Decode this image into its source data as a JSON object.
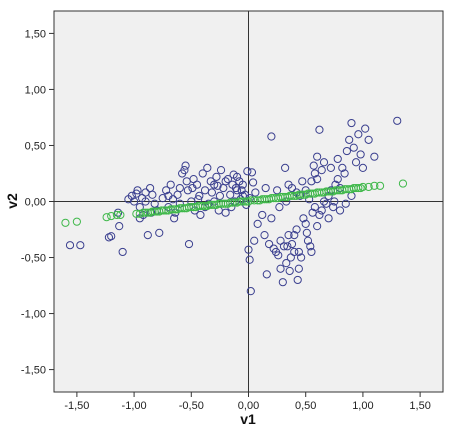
{
  "chart_data": {
    "type": "scatter",
    "title": "",
    "xlabel": "v1",
    "ylabel": "v2",
    "xlim": [
      -1.7,
      1.7
    ],
    "ylim": [
      -1.7,
      1.7
    ],
    "xticks": [
      "-1,50",
      "-1,00",
      "-0,50",
      "0,00",
      "0,50",
      "1,00",
      "1,50"
    ],
    "yticks": [
      "1,50",
      "1,00",
      "0,50",
      "0,00",
      "-0,50",
      "-1,00",
      "-1,50"
    ],
    "xtick_values": [
      -1.5,
      -1.0,
      -0.5,
      0.0,
      0.5,
      1.0,
      1.5
    ],
    "ytick_values": [
      1.5,
      1.0,
      0.5,
      0.0,
      -0.5,
      -1.0,
      -1.5
    ],
    "reference_lines": {
      "x": 0,
      "y": 0
    },
    "grid": false,
    "plot_background": "#f0f0f0",
    "series": [
      {
        "color": "#3a3f8f",
        "points": [
          [
            -1.56,
            -0.39
          ],
          [
            -1.47,
            -0.39
          ],
          [
            -1.22,
            -0.32
          ],
          [
            -1.2,
            -0.31
          ],
          [
            -1.13,
            -0.22
          ],
          [
            -1.1,
            -0.45
          ],
          [
            -1.14,
            -0.1
          ],
          [
            -1.05,
            0.02
          ],
          [
            -1.02,
            0.05
          ],
          [
            -0.98,
            0.07
          ],
          [
            -0.97,
            0.1
          ],
          [
            -0.95,
            -0.05
          ],
          [
            -0.93,
            0.03
          ],
          [
            -0.92,
            -0.12
          ],
          [
            -0.9,
            0.0
          ],
          [
            -0.88,
            -0.3
          ],
          [
            -0.86,
            0.12
          ],
          [
            -0.84,
            0.06
          ],
          [
            -0.82,
            -0.02
          ],
          [
            -0.8,
            -0.08
          ],
          [
            -0.78,
            -0.28
          ],
          [
            -0.75,
            0.03
          ],
          [
            -0.72,
            0.1
          ],
          [
            -0.7,
            -0.05
          ],
          [
            -0.68,
            0.15
          ],
          [
            -0.66,
            0.02
          ],
          [
            -0.64,
            -0.1
          ],
          [
            -0.62,
            0.06
          ],
          [
            -0.6,
            -0.02
          ],
          [
            -0.58,
            0.25
          ],
          [
            -0.56,
            0.28
          ],
          [
            -0.55,
            0.32
          ],
          [
            -0.54,
            0.18
          ],
          [
            -0.53,
            0.1
          ],
          [
            -0.52,
            -0.38
          ],
          [
            -0.5,
            0.0
          ],
          [
            -0.49,
            0.12
          ],
          [
            -0.48,
            0.2
          ],
          [
            -0.47,
            -0.08
          ],
          [
            -0.45,
            0.15
          ],
          [
            -0.43,
            0.05
          ],
          [
            -0.42,
            -0.12
          ],
          [
            -0.4,
            0.25
          ],
          [
            -0.38,
            0.1
          ],
          [
            -0.36,
            0.3
          ],
          [
            -0.35,
            -0.02
          ],
          [
            -0.33,
            0.18
          ],
          [
            -0.32,
            0.08
          ],
          [
            -0.3,
            0.0
          ],
          [
            -0.28,
            0.22
          ],
          [
            -0.27,
            0.14
          ],
          [
            -0.26,
            -0.08
          ],
          [
            -0.25,
            0.05
          ],
          [
            -0.24,
            0.28
          ],
          [
            -0.22,
            0.12
          ],
          [
            -0.2,
            -0.1
          ],
          [
            -0.18,
            0.2
          ],
          [
            -0.16,
            0.06
          ],
          [
            -0.15,
            -0.05
          ],
          [
            -0.14,
            0.15
          ],
          [
            -0.13,
            0.24
          ],
          [
            -0.12,
            0.0
          ],
          [
            -0.11,
            0.12
          ],
          [
            -0.1,
            0.1
          ],
          [
            -0.08,
            0.18
          ],
          [
            -0.07,
            0.02
          ],
          [
            -0.06,
            0.1
          ],
          [
            -0.05,
            0.15
          ],
          [
            -0.03,
            0.06
          ],
          [
            -0.02,
            -0.03
          ],
          [
            -0.01,
            0.27
          ],
          [
            0.03,
            0.26
          ],
          [
            0.04,
            0.17
          ],
          [
            0.06,
            0.08
          ],
          [
            0.0,
            -0.43
          ],
          [
            0.01,
            -0.52
          ],
          [
            0.02,
            -0.8
          ],
          [
            0.05,
            -0.35
          ],
          [
            0.08,
            -0.2
          ],
          [
            0.12,
            -0.12
          ],
          [
            0.14,
            -0.3
          ],
          [
            0.16,
            -0.65
          ],
          [
            0.18,
            -0.38
          ],
          [
            0.2,
            -0.15
          ],
          [
            0.22,
            -0.42
          ],
          [
            0.24,
            -0.45
          ],
          [
            0.26,
            -0.48
          ],
          [
            0.28,
            -0.6
          ],
          [
            0.3,
            -0.72
          ],
          [
            0.31,
            -0.4
          ],
          [
            0.33,
            -0.55
          ],
          [
            0.35,
            -0.3
          ],
          [
            0.36,
            -0.62
          ],
          [
            0.38,
            -0.38
          ],
          [
            0.4,
            -0.3
          ],
          [
            0.42,
            -0.25
          ],
          [
            0.43,
            -0.7
          ],
          [
            0.44,
            -0.45
          ],
          [
            0.46,
            -0.5
          ],
          [
            0.48,
            -0.15
          ],
          [
            0.5,
            -0.2
          ],
          [
            0.52,
            -0.35
          ],
          [
            0.54,
            -0.4
          ],
          [
            0.56,
            -0.1
          ],
          [
            0.58,
            -0.05
          ],
          [
            0.6,
            -0.22
          ],
          [
            0.62,
            -0.12
          ],
          [
            0.64,
            -0.08
          ],
          [
            0.66,
            0.0
          ],
          [
            0.68,
            -0.02
          ],
          [
            0.7,
            0.05
          ],
          [
            0.72,
            0.1
          ],
          [
            0.74,
            -0.05
          ],
          [
            0.76,
            0.15
          ],
          [
            0.78,
            0.2
          ],
          [
            0.8,
            0.12
          ],
          [
            0.82,
            0.3
          ],
          [
            0.84,
            0.25
          ],
          [
            0.86,
            0.45
          ],
          [
            0.88,
            0.55
          ],
          [
            0.9,
            0.7
          ],
          [
            0.92,
            0.48
          ],
          [
            0.94,
            0.35
          ],
          [
            0.96,
            0.6
          ],
          [
            0.98,
            0.42
          ],
          [
            1.0,
            0.3
          ],
          [
            1.02,
            0.65
          ],
          [
            1.05,
            0.55
          ],
          [
            1.1,
            0.4
          ],
          [
            1.3,
            0.72
          ],
          [
            0.55,
            0.18
          ],
          [
            0.57,
            0.32
          ],
          [
            0.6,
            0.4
          ],
          [
            0.62,
            0.64
          ],
          [
            0.64,
            0.28
          ],
          [
            0.58,
            0.25
          ],
          [
            0.5,
            0.1
          ],
          [
            0.45,
            0.05
          ],
          [
            0.38,
            0.12
          ],
          [
            0.33,
            0.0
          ],
          [
            0.27,
            -0.05
          ],
          [
            0.2,
            0.58
          ],
          [
            0.32,
            0.3
          ],
          [
            0.15,
            0.12
          ],
          [
            0.25,
            0.1
          ],
          [
            0.35,
            0.15
          ],
          [
            0.42,
            0.08
          ],
          [
            0.47,
            0.18
          ],
          [
            0.53,
            0.02
          ],
          [
            0.7,
            -0.15
          ],
          [
            0.75,
            0.0
          ],
          [
            0.8,
            -0.08
          ],
          [
            0.85,
            -0.02
          ],
          [
            0.9,
            0.05
          ],
          [
            0.6,
            0.2
          ],
          [
            0.66,
            0.35
          ],
          [
            0.72,
            0.3
          ],
          [
            0.78,
            0.38
          ],
          [
            0.4,
            -0.45
          ],
          [
            0.34,
            -0.4
          ],
          [
            0.28,
            -0.35
          ],
          [
            0.37,
            -0.5
          ],
          [
            0.44,
            -0.6
          ],
          [
            0.51,
            -0.28
          ],
          [
            0.55,
            -0.45
          ],
          [
            -0.95,
            -0.15
          ],
          [
            -0.9,
            0.08
          ],
          [
            -1.0,
            0.0
          ],
          [
            -0.85,
            -0.1
          ],
          [
            -0.7,
            0.05
          ],
          [
            -0.65,
            -0.15
          ],
          [
            -0.6,
            0.12
          ],
          [
            -0.44,
            0.02
          ],
          [
            -0.38,
            -0.05
          ],
          [
            -0.3,
            0.15
          ],
          [
            -0.2,
            0.18
          ],
          [
            -0.1,
            0.22
          ],
          [
            -0.05,
            0.05
          ],
          [
            0.01,
            0.03
          ]
        ]
      },
      {
        "color": "#3fb84a",
        "points": [
          [
            -1.6,
            -0.19
          ],
          [
            -1.5,
            -0.18
          ],
          [
            -1.24,
            -0.14
          ],
          [
            -1.2,
            -0.13
          ],
          [
            -1.15,
            -0.12
          ],
          [
            -1.12,
            -0.12
          ],
          [
            -0.98,
            -0.11
          ],
          [
            -0.95,
            -0.11
          ],
          [
            -0.92,
            -0.1
          ],
          [
            -0.9,
            -0.1
          ],
          [
            -0.88,
            -0.1
          ],
          [
            -0.86,
            -0.1
          ],
          [
            -0.84,
            -0.09
          ],
          [
            -0.82,
            -0.09
          ],
          [
            -0.8,
            -0.09
          ],
          [
            -0.78,
            -0.09
          ],
          [
            -0.76,
            -0.08
          ],
          [
            -0.74,
            -0.08
          ],
          [
            -0.72,
            -0.08
          ],
          [
            -0.7,
            -0.08
          ],
          [
            -0.68,
            -0.07
          ],
          [
            -0.66,
            -0.07
          ],
          [
            -0.64,
            -0.07
          ],
          [
            -0.62,
            -0.07
          ],
          [
            -0.6,
            -0.06
          ],
          [
            -0.58,
            -0.06
          ],
          [
            -0.56,
            -0.06
          ],
          [
            -0.54,
            -0.06
          ],
          [
            -0.52,
            -0.05
          ],
          [
            -0.5,
            -0.05
          ],
          [
            -0.48,
            -0.05
          ],
          [
            -0.46,
            -0.05
          ],
          [
            -0.44,
            -0.04
          ],
          [
            -0.42,
            -0.04
          ],
          [
            -0.4,
            -0.04
          ],
          [
            -0.38,
            -0.04
          ],
          [
            -0.36,
            -0.04
          ],
          [
            -0.34,
            -0.03
          ],
          [
            -0.32,
            -0.03
          ],
          [
            -0.3,
            -0.03
          ],
          [
            -0.28,
            -0.03
          ],
          [
            -0.26,
            -0.02
          ],
          [
            -0.24,
            -0.02
          ],
          [
            -0.22,
            -0.02
          ],
          [
            -0.2,
            -0.02
          ],
          [
            -0.18,
            -0.02
          ],
          [
            -0.16,
            -0.01
          ],
          [
            -0.14,
            -0.01
          ],
          [
            -0.12,
            -0.01
          ],
          [
            -0.1,
            -0.01
          ],
          [
            -0.08,
            0.0
          ],
          [
            -0.06,
            0.0
          ],
          [
            -0.04,
            0.0
          ],
          [
            -0.02,
            0.0
          ],
          [
            0.0,
            0.0
          ],
          [
            0.02,
            0.01
          ],
          [
            0.05,
            0.01
          ],
          [
            0.08,
            0.01
          ],
          [
            0.1,
            0.01
          ],
          [
            0.12,
            0.02
          ],
          [
            0.14,
            0.02
          ],
          [
            0.16,
            0.02
          ],
          [
            0.18,
            0.02
          ],
          [
            0.2,
            0.03
          ],
          [
            0.22,
            0.03
          ],
          [
            0.24,
            0.03
          ],
          [
            0.26,
            0.03
          ],
          [
            0.28,
            0.04
          ],
          [
            0.3,
            0.04
          ],
          [
            0.32,
            0.04
          ],
          [
            0.34,
            0.04
          ],
          [
            0.36,
            0.05
          ],
          [
            0.38,
            0.05
          ],
          [
            0.4,
            0.05
          ],
          [
            0.42,
            0.05
          ],
          [
            0.44,
            0.06
          ],
          [
            0.46,
            0.06
          ],
          [
            0.48,
            0.06
          ],
          [
            0.5,
            0.06
          ],
          [
            0.52,
            0.07
          ],
          [
            0.54,
            0.07
          ],
          [
            0.56,
            0.07
          ],
          [
            0.58,
            0.07
          ],
          [
            0.6,
            0.08
          ],
          [
            0.62,
            0.08
          ],
          [
            0.64,
            0.08
          ],
          [
            0.66,
            0.08
          ],
          [
            0.68,
            0.09
          ],
          [
            0.7,
            0.09
          ],
          [
            0.72,
            0.09
          ],
          [
            0.74,
            0.09
          ],
          [
            0.76,
            0.1
          ],
          [
            0.78,
            0.1
          ],
          [
            0.8,
            0.1
          ],
          [
            0.82,
            0.1
          ],
          [
            0.84,
            0.11
          ],
          [
            0.86,
            0.11
          ],
          [
            0.88,
            0.11
          ],
          [
            0.9,
            0.11
          ],
          [
            0.92,
            0.12
          ],
          [
            0.94,
            0.12
          ],
          [
            0.96,
            0.12
          ],
          [
            0.98,
            0.12
          ],
          [
            1.0,
            0.13
          ],
          [
            1.05,
            0.13
          ],
          [
            1.1,
            0.14
          ],
          [
            1.15,
            0.14
          ],
          [
            1.35,
            0.16
          ]
        ]
      }
    ]
  }
}
